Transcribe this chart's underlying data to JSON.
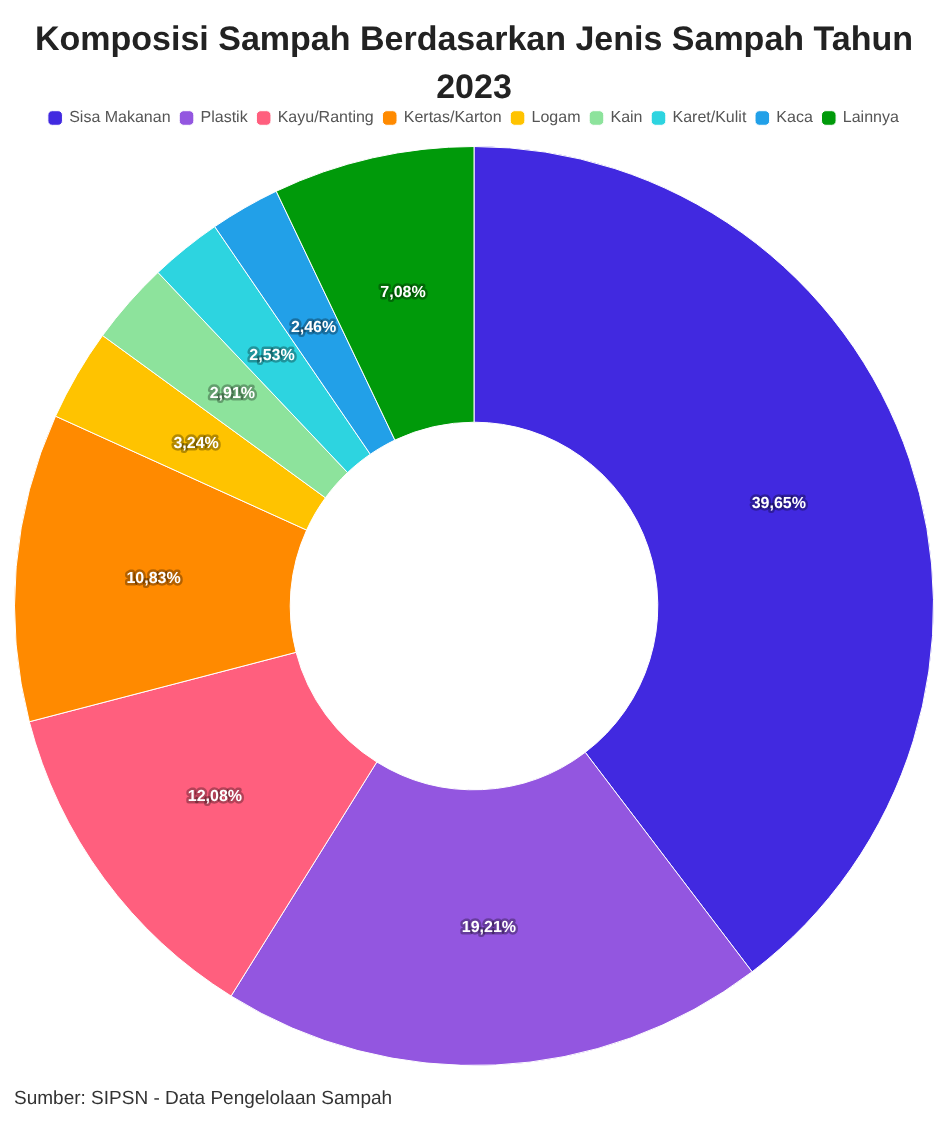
{
  "chart_data": {
    "type": "donut",
    "title": "Komposisi Sampah Berdasarkan Jenis Sampah Tahun 2023",
    "categories": [
      "Sisa Makanan",
      "Plastik",
      "Kayu/Ranting",
      "Kertas/Karton",
      "Logam",
      "Kain",
      "Karet/Kulit",
      "Kaca",
      "Lainnya"
    ],
    "values": [
      39.65,
      19.21,
      12.08,
      10.83,
      3.24,
      2.91,
      2.53,
      2.46,
      7.08
    ],
    "colors": [
      "#4129e0",
      "#9356e0",
      "#ff5f7e",
      "#ff8a00",
      "#ffc300",
      "#8de39c",
      "#2dd4e0",
      "#22a0e8",
      "#009a0a"
    ],
    "value_labels": [
      "39,65%",
      "19,21%",
      "12,08%",
      "10,83%",
      "3,24%",
      "2,91%",
      "2,53%",
      "2,46%",
      "7,08%"
    ],
    "legend": "top",
    "annotations": [
      "Sumber: SIPSN - Data Pengelolaan Sampah"
    ]
  }
}
